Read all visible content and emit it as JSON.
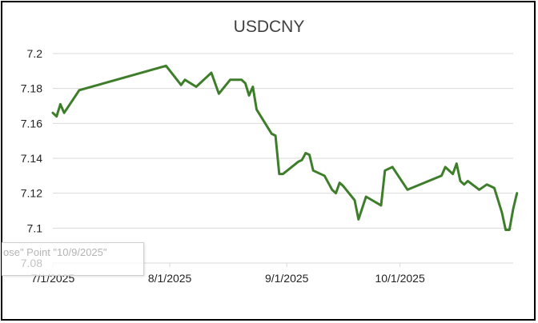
{
  "chart_data": {
    "type": "line",
    "title": "USDCNY",
    "xlabel": "",
    "ylabel": "",
    "x_tick_labels": [
      "7/1/2025",
      "8/1/2025",
      "9/1/2025",
      "10/1/2025"
    ],
    "x_ticks": [
      "2025-07-01",
      "2025-08-01",
      "2025-09-01",
      "2025-10-01"
    ],
    "xlim": [
      "2025-07-01",
      "2025-10-31"
    ],
    "y_tick_labels": [
      "7.08",
      "7.1",
      "7.12",
      "7.14",
      "7.16",
      "7.18",
      "7.2"
    ],
    "ylim": [
      7.08,
      7.2
    ],
    "grid": "horizontal",
    "legend": "none",
    "series": [
      {
        "color": "#3e7e2b",
        "points": [
          [
            "2025-07-01",
            7.166
          ],
          [
            "2025-07-02",
            7.164
          ],
          [
            "2025-07-03",
            7.171
          ],
          [
            "2025-07-04",
            7.166
          ],
          [
            "2025-07-08",
            7.179
          ],
          [
            "2025-07-31",
            7.193
          ],
          [
            "2025-08-04",
            7.182
          ],
          [
            "2025-08-05",
            7.185
          ],
          [
            "2025-08-08",
            7.181
          ],
          [
            "2025-08-12",
            7.189
          ],
          [
            "2025-08-14",
            7.177
          ],
          [
            "2025-08-17",
            7.185
          ],
          [
            "2025-08-20",
            7.185
          ],
          [
            "2025-08-21",
            7.183
          ],
          [
            "2025-08-22",
            7.176
          ],
          [
            "2025-08-23",
            7.181
          ],
          [
            "2025-08-24",
            7.168
          ],
          [
            "2025-08-28",
            7.154
          ],
          [
            "2025-08-29",
            7.153
          ],
          [
            "2025-08-30",
            7.131
          ],
          [
            "2025-08-31",
            7.131
          ],
          [
            "2025-09-04",
            7.138
          ],
          [
            "2025-09-05",
            7.139
          ],
          [
            "2025-09-06",
            7.143
          ],
          [
            "2025-09-07",
            7.142
          ],
          [
            "2025-09-08",
            7.133
          ],
          [
            "2025-09-11",
            7.13
          ],
          [
            "2025-09-13",
            7.122
          ],
          [
            "2025-09-14",
            7.12
          ],
          [
            "2025-09-15",
            7.126
          ],
          [
            "2025-09-16",
            7.124
          ],
          [
            "2025-09-19",
            7.116
          ],
          [
            "2025-09-20",
            7.105
          ],
          [
            "2025-09-22",
            7.118
          ],
          [
            "2025-09-26",
            7.113
          ],
          [
            "2025-09-27",
            7.133
          ],
          [
            "2025-09-29",
            7.135
          ],
          [
            "2025-10-03",
            7.122
          ],
          [
            "2025-10-12",
            7.13
          ],
          [
            "2025-10-13",
            7.135
          ],
          [
            "2025-10-15",
            7.131
          ],
          [
            "2025-10-16",
            7.137
          ],
          [
            "2025-10-17",
            7.127
          ],
          [
            "2025-10-18",
            7.125
          ],
          [
            "2025-10-19",
            7.127
          ],
          [
            "2025-10-22",
            7.122
          ],
          [
            "2025-10-24",
            7.125
          ],
          [
            "2025-10-25",
            7.124
          ],
          [
            "2025-10-26",
            7.123
          ],
          [
            "2025-10-28",
            7.109
          ],
          [
            "2025-10-29",
            7.099
          ],
          [
            "2025-10-30",
            7.099
          ],
          [
            "2025-10-31",
            7.111
          ],
          [
            "2025-11-01",
            7.12
          ]
        ]
      }
    ]
  },
  "tooltip": {
    "text": "ose\" Point \"10/9/2025\""
  }
}
